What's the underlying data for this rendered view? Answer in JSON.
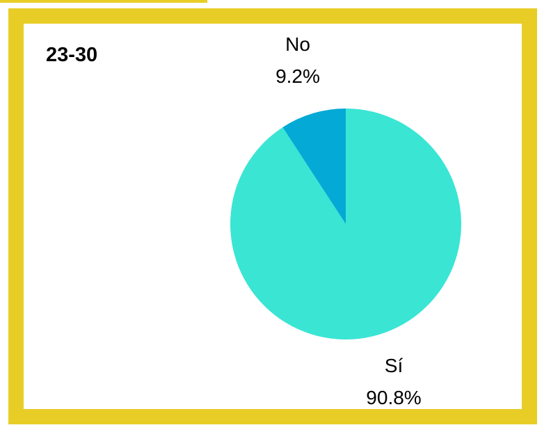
{
  "colors": {
    "frame": "#e8cd27",
    "si_slice": "#3ae5d4",
    "no_slice": "#04a9d6"
  },
  "chart_data": {
    "type": "pie",
    "title": "23-30",
    "slices": [
      {
        "label": "Sí",
        "value": 90.8,
        "value_label": "90.8%"
      },
      {
        "label": "No",
        "value": 9.2,
        "value_label": "9.2%"
      }
    ]
  }
}
